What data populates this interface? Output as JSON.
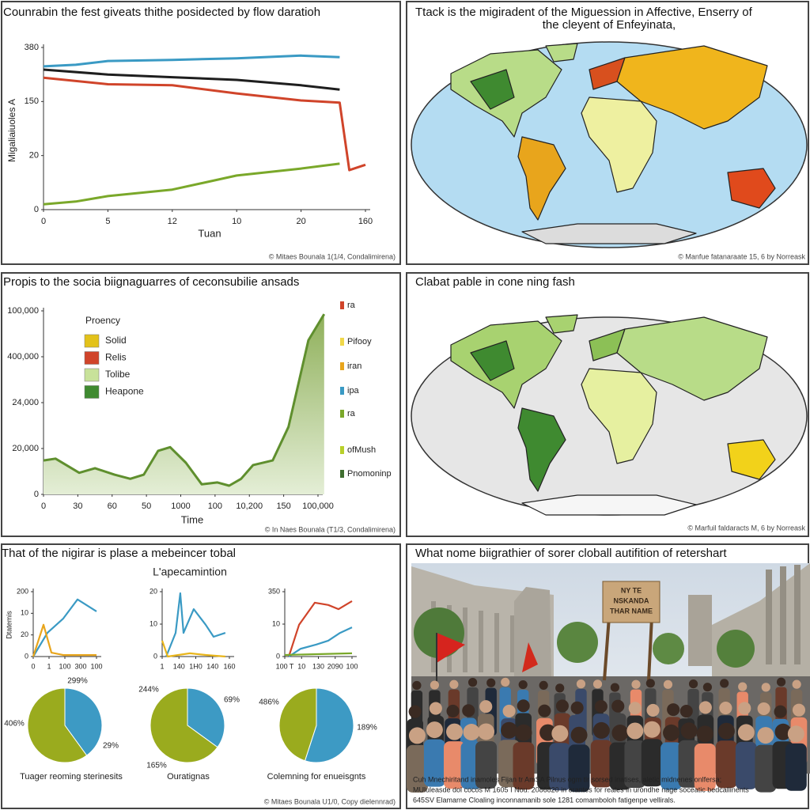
{
  "chart_data": [
    {
      "type": "line",
      "title": "Counrabin the fest giveats thithe posidected by flow daratioh",
      "xlabel": "Tuan",
      "ylabel": "Migaliaiuoles A",
      "credit": "© Mitaes Bounala 1(1/4, Condalimirena)",
      "xlim": [
        0,
        5
      ],
      "ylim": [
        0,
        3
      ],
      "xticks": [
        {
          "value": 0,
          "label": "0"
        },
        {
          "value": 1,
          "label": "5"
        },
        {
          "value": 2,
          "label": "12"
        },
        {
          "value": 3,
          "label": "10"
        },
        {
          "value": 4,
          "label": "20"
        },
        {
          "value": 5,
          "label": "160"
        }
      ],
      "yticks": [
        {
          "value": 0,
          "label": "0"
        },
        {
          "value": 1,
          "label": "20"
        },
        {
          "value": 2,
          "label": "150"
        },
        {
          "value": 3,
          "label": "380"
        }
      ],
      "series": [
        {
          "color": "#3a9ac4",
          "x": [
            0,
            0.5,
            1,
            2,
            3,
            4,
            4.6
          ],
          "values": [
            2.65,
            2.68,
            2.75,
            2.77,
            2.8,
            2.85,
            2.82
          ]
        },
        {
          "color": "#1e1e1e",
          "x": [
            0,
            1,
            2,
            3,
            4,
            4.6
          ],
          "values": [
            2.59,
            2.5,
            2.45,
            2.4,
            2.3,
            2.22
          ]
        },
        {
          "color": "#d0442a",
          "x": [
            0,
            1,
            2,
            3,
            4,
            4.6,
            4.75,
            5
          ],
          "values": [
            2.44,
            2.32,
            2.3,
            2.15,
            2.02,
            1.98,
            0.73,
            0.83
          ]
        },
        {
          "color": "#7aa82a",
          "x": [
            0,
            0.5,
            1,
            2,
            3,
            4,
            4.6
          ],
          "values": [
            0.1,
            0.15,
            0.25,
            0.37,
            0.63,
            0.76,
            0.85
          ]
        }
      ]
    },
    {
      "type": "area",
      "title": "Propis to the socia biignaguarres of ceconsubilie ansads",
      "xlabel": "Time",
      "credit": "© In Naes Bounala (T1/3, Condalimirena)",
      "xlim": [
        0,
        8
      ],
      "ylim": [
        0,
        4
      ],
      "xticks": [
        {
          "value": 0,
          "label": "0"
        },
        {
          "value": 1,
          "label": "30"
        },
        {
          "value": 2,
          "label": "60"
        },
        {
          "value": 3,
          "label": "50"
        },
        {
          "value": 4,
          "label": "1000"
        },
        {
          "value": 5,
          "label": "100"
        },
        {
          "value": 6,
          "label": "10,200"
        },
        {
          "value": 7,
          "label": "150"
        },
        {
          "value": 8,
          "label": "100,000"
        }
      ],
      "yticks": [
        {
          "value": 0,
          "label": "0"
        },
        {
          "value": 1,
          "label": "20,000"
        },
        {
          "value": 2,
          "label": "24,000"
        },
        {
          "value": 3,
          "label": "400,000"
        },
        {
          "value": 4,
          "label": "100,000"
        }
      ],
      "series": [
        {
          "color": "#5f8f2e",
          "x": [
            0,
            0.35,
            1.04,
            1.5,
            2.07,
            2.53,
            2.92,
            3.34,
            3.69,
            4.15,
            4.61,
            5.07,
            5.41,
            5.76,
            6.11,
            6.68,
            7.14,
            7.72,
            8.18
          ],
          "values": [
            0.74,
            0.78,
            0.47,
            0.57,
            0.43,
            0.34,
            0.43,
            0.95,
            1.03,
            0.69,
            0.22,
            0.26,
            0.19,
            0.34,
            0.64,
            0.74,
            1.47,
            3.36,
            3.93
          ]
        }
      ],
      "legend": {
        "title": "Proency",
        "items": [
          {
            "name": "Solid",
            "color": "#e3c21a"
          },
          {
            "name": "Relis",
            "color": "#d0442a"
          },
          {
            "name": "Tolibe",
            "color": "#c8e29a"
          },
          {
            "name": "Heapone",
            "color": "#3f8a30"
          }
        ]
      },
      "side_legend": [
        {
          "name": "ra",
          "color": "#d0442a"
        },
        {
          "name": "Pifooy",
          "color": "#f0d84a"
        },
        {
          "name": "iran",
          "color": "#e8a51c"
        },
        {
          "name": "ipa",
          "color": "#3a9ac4"
        },
        {
          "name": "ra",
          "color": "#7aa82a"
        },
        {
          "name": "ofMush",
          "color": "#b8d02a"
        },
        {
          "name": "Pnomoninp",
          "color": "#3f6e30"
        }
      ]
    },
    {
      "type": "line",
      "ylabel": "Dtatemis",
      "xlim": [
        0,
        4
      ],
      "ylim": [
        0,
        3
      ],
      "xticks": [
        {
          "value": 0,
          "label": "0"
        },
        {
          "value": 1,
          "label": "1"
        },
        {
          "value": 2,
          "label": "100"
        },
        {
          "value": 3,
          "label": "300"
        },
        {
          "value": 4,
          "label": "100"
        }
      ],
      "yticks": [
        {
          "value": 0,
          "label": "0"
        },
        {
          "value": 1,
          "label": "20"
        },
        {
          "value": 2,
          "label": "10"
        },
        {
          "value": 3,
          "label": "200"
        }
      ],
      "series": [
        {
          "color": "#3a9ac4",
          "x": [
            0,
            0.9,
            1.9,
            2.8,
            4
          ],
          "values": [
            0,
            1.1,
            1.76,
            2.64,
            2.09
          ]
        },
        {
          "color": "#e8a51c",
          "x": [
            0,
            0.65,
            1.15,
            1.9,
            4
          ],
          "values": [
            0,
            1.47,
            0.18,
            0.07,
            0.07
          ]
        }
      ]
    },
    {
      "type": "line",
      "xlim": [
        0,
        4
      ],
      "ylim": [
        0,
        2
      ],
      "xticks": [
        {
          "value": 0,
          "label": "1"
        },
        {
          "value": 1,
          "label": "140"
        },
        {
          "value": 2,
          "label": "1H0"
        },
        {
          "value": 3,
          "label": "140"
        },
        {
          "value": 4,
          "label": "160"
        }
      ],
      "yticks": [
        {
          "value": 0,
          "label": "0"
        },
        {
          "value": 1,
          "label": "10"
        },
        {
          "value": 2,
          "label": "20"
        }
      ],
      "series": [
        {
          "color": "#3a9ac4",
          "x": [
            0.24,
            0.8,
            1.08,
            1.27,
            1.88,
            2.59,
            3.06,
            3.76
          ],
          "values": [
            0,
            0.73,
            1.95,
            0.73,
            1.46,
            0.98,
            0.61,
            0.73
          ]
        },
        {
          "color": "#e8b51c",
          "x": [
            0,
            0.33,
            1.65,
            2.59,
            3.76
          ],
          "values": [
            0.49,
            0,
            0.1,
            0.05,
            0
          ]
        }
      ]
    },
    {
      "type": "line",
      "xlim": [
        0,
        4
      ],
      "ylim": [
        0,
        2
      ],
      "xticks": [
        {
          "value": 0,
          "label": "100 T"
        },
        {
          "value": 1,
          "label": "10"
        },
        {
          "value": 2,
          "label": "130"
        },
        {
          "value": 3,
          "label": "2090"
        },
        {
          "value": 4,
          "label": "100"
        }
      ],
      "yticks": [
        {
          "value": 0,
          "label": "0"
        },
        {
          "value": 1,
          "label": "10"
        },
        {
          "value": 2,
          "label": "350"
        }
      ],
      "series": [
        {
          "color": "#d0442a",
          "x": [
            0.24,
            0.85,
            1.79,
            2.59,
            3.2,
            4
          ],
          "values": [
            0,
            0.98,
            1.66,
            1.59,
            1.46,
            1.71
          ]
        },
        {
          "color": "#3a9ac4",
          "x": [
            0.24,
            0.94,
            1.88,
            2.59,
            3.29,
            4
          ],
          "values": [
            0,
            0.24,
            0.37,
            0.49,
            0.73,
            0.9
          ]
        },
        {
          "color": "#7aa82a",
          "x": [
            0,
            4
          ],
          "values": [
            0.05,
            0.1
          ]
        }
      ]
    },
    {
      "type": "pie",
      "caption": "Tuager reoming sterinesits",
      "values": [
        40,
        60
      ],
      "colors": [
        "#3d9ac4",
        "#9aab1e"
      ],
      "annotations": [
        "299%",
        "406%",
        "29%"
      ]
    },
    {
      "type": "pie",
      "caption": "Ouratignas",
      "values": [
        35,
        65
      ],
      "colors": [
        "#3d9ac4",
        "#9aab1e"
      ],
      "annotations": [
        "244%",
        "69%",
        "165%"
      ]
    },
    {
      "type": "pie",
      "caption": "Colemning for enueisgnts",
      "values": [
        55,
        45
      ],
      "colors": [
        "#3d9ac4",
        "#9aab1e"
      ],
      "annotations": [
        "486%",
        "189%"
      ]
    }
  ],
  "maps": [
    {
      "title_lines": [
        "Ttack is the migiradent of the Miguession in Affective, Enserry of",
        "the cleyent of Enfeyinata,"
      ],
      "credit": "© Manfue fatanaraate 15, 6 by Norreask"
    },
    {
      "title_lines": [
        "Clabat pable in cone ning fash"
      ],
      "credit": "© Marfuil faldaracts M, 6 by Norreask"
    }
  ],
  "dashboard": {
    "title": "That of the nigirar is plase a mebeincer tobal",
    "subtitle": "L'apecamintion",
    "credit": "© Mitaes Bounala U1/0, Copy dielennrad)"
  },
  "photo": {
    "title": "What nome biigrathier of sorer cloball autifition of retershart",
    "sign": [
      "NY TE",
      "NSKANDA",
      "THAR NAME"
    ],
    "caption": [
      "Cuh Mnechiritand inamoles Fijan tr AmSA Pilnus ogm tir sorsed inatises, aletic midnenes onlfersa;",
      "MUluleasde dol cocos M 1605 I Nou. 2086820 in erantes for reales in urondhe nage soceatic bedcallinents",
      "645SV Elamarne Cloaling inconnamanib sole 1281 comamboloh fatigenpe vellirals."
    ]
  }
}
